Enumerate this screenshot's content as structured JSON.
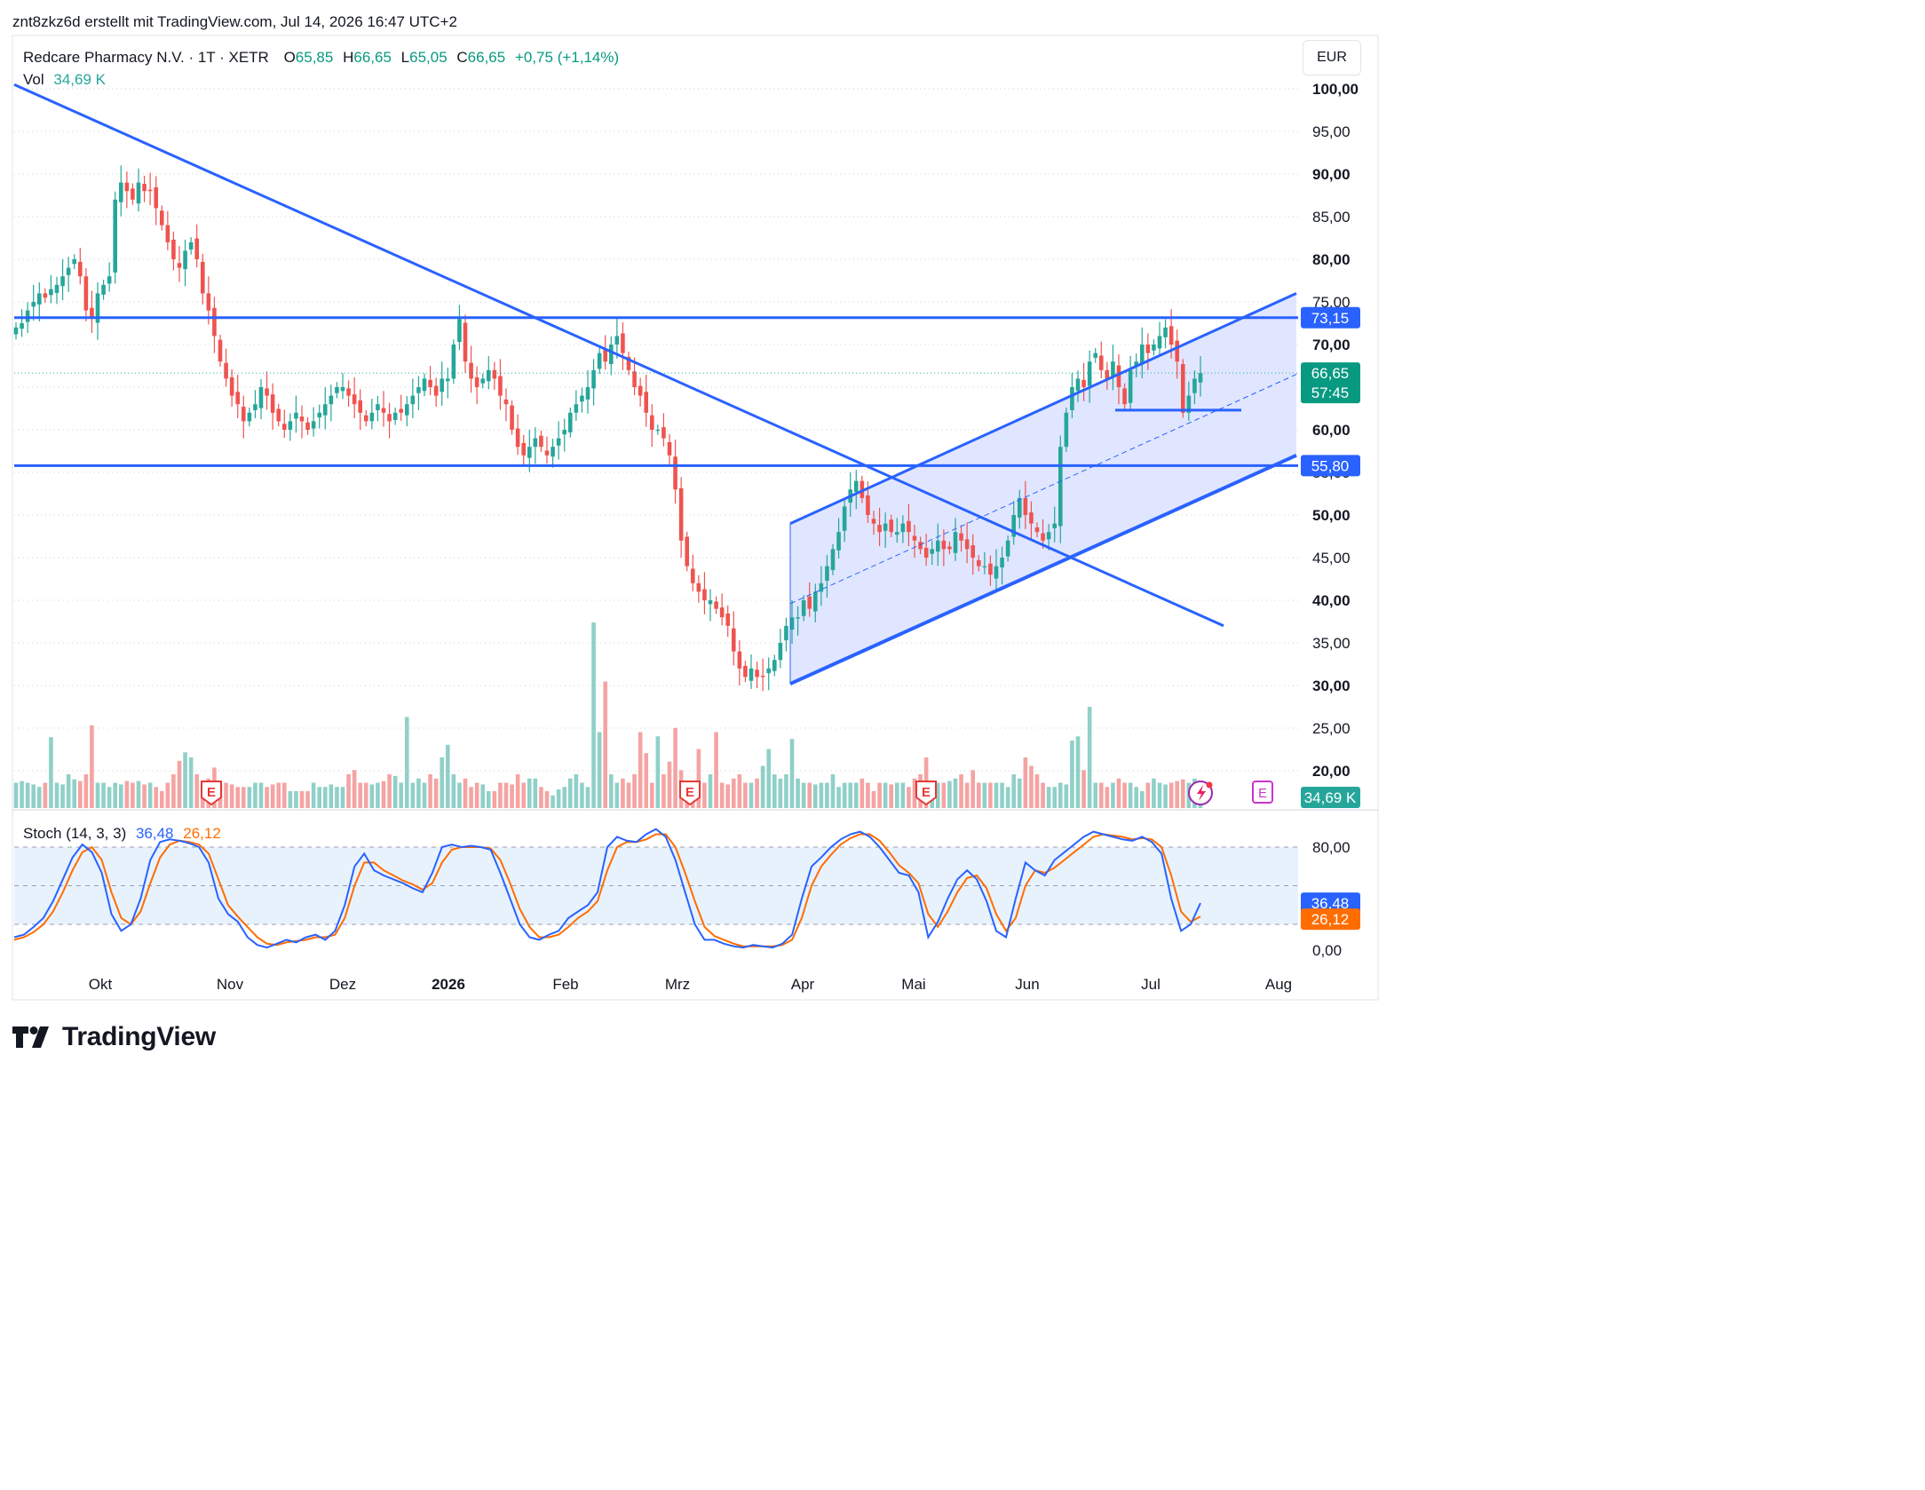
{
  "caption": "znt8zkz6d erstellt mit TradingView.com, Jul 14, 2026 16:47 UTC+2",
  "legend": {
    "symbol": "Redcare Pharmacy N.V. · 1T · XETR",
    "o_label": "O",
    "o_value": "65,85",
    "h_label": "H",
    "h_value": "66,65",
    "l_label": "L",
    "l_value": "65,05",
    "c_label": "C",
    "c_value": "66,65",
    "change": "+0,75 (+1,14%)",
    "vol_label": "Vol",
    "vol_value": "34,69 K",
    "stoch_label": "Stoch (14, 3, 3)",
    "stoch_k": "36,48",
    "stoch_d": "26,12"
  },
  "currency": "EUR",
  "brand": "TradingView",
  "colors": {
    "up": "#26a69a",
    "down": "#ef5350",
    "vol_up": "#8fd0c8",
    "vol_down": "#f5a3a3",
    "trendline": "#2962ff",
    "channel_fill": "#dbe2ff",
    "stoch_k": "#2962ff",
    "stoch_d": "#ff6d00",
    "stoch_band": "#e8f2fd",
    "earnings": "#e53935",
    "dividend": "#cc33cc"
  },
  "icons": [
    "earnings-marker-icon",
    "tradingview-logo-icon",
    "flash-icon",
    "dividend-marker-icon"
  ],
  "chart_data": {
    "type": "candlestick",
    "price_axis": {
      "ticks": [
        "100,00",
        "95,00",
        "90,00",
        "85,00",
        "80,00",
        "75,00",
        "70,00",
        "65,00",
        "60,00",
        "55,00",
        "50,00",
        "45,00",
        "40,00",
        "35,00",
        "30,00",
        "25,00",
        "20,00"
      ],
      "ylim": [
        18,
        104
      ]
    },
    "time_axis": [
      "Okt",
      "Nov",
      "Dez",
      "2026",
      "Feb",
      "Mrz",
      "Apr",
      "Mai",
      "Jun",
      "Jul",
      "Aug"
    ],
    "price_labels": [
      {
        "value": "73,15",
        "kind": "line"
      },
      {
        "value": "66,65",
        "kind": "last"
      },
      {
        "value": "57:45",
        "kind": "countdown"
      },
      {
        "value": "55,80",
        "kind": "line"
      },
      {
        "value": "34,69 K",
        "kind": "volume"
      }
    ],
    "candles_close": [
      72,
      72.5,
      74,
      75,
      76,
      75.5,
      76.5,
      77,
      78,
      79,
      80,
      78,
      74,
      73,
      76,
      77,
      78,
      87,
      89,
      88,
      87,
      89,
      88,
      88,
      86,
      84,
      82,
      80,
      79,
      81,
      82,
      80,
      76,
      74,
      71,
      68,
      66,
      64,
      63,
      61,
      62,
      63,
      65,
      64,
      62,
      61,
      60,
      61,
      62,
      61,
      60,
      61,
      62,
      63,
      64,
      65,
      65,
      64,
      63,
      62,
      61,
      62,
      63,
      62,
      61,
      62,
      62,
      63,
      64,
      65,
      66,
      65,
      64,
      66,
      66,
      70,
      73,
      68,
      66,
      65,
      66,
      67,
      66,
      64,
      63,
      60,
      58,
      57,
      58,
      59,
      58,
      57,
      58,
      59,
      60,
      62,
      63,
      64,
      65,
      67,
      69,
      68,
      70,
      71,
      69,
      67,
      65,
      64,
      62,
      60,
      60,
      59,
      57,
      53,
      47,
      44,
      42,
      41,
      40,
      40,
      39,
      38,
      37,
      34,
      32,
      31,
      32,
      31,
      31,
      32,
      33,
      35,
      37,
      38,
      38,
      40,
      39,
      41,
      42,
      44,
      46,
      48,
      51,
      53,
      54,
      52,
      50,
      49,
      48,
      49,
      48,
      48,
      49,
      48,
      47,
      46,
      45,
      46,
      47,
      46,
      46,
      48,
      47,
      46,
      45,
      44,
      44,
      43,
      44,
      45,
      47,
      50,
      52,
      50,
      49,
      48,
      47,
      48,
      49,
      58,
      62,
      65,
      66,
      65,
      68,
      69,
      67,
      66,
      68,
      65,
      63,
      67,
      68,
      70,
      69,
      70,
      71,
      72,
      70,
      68,
      62,
      64,
      66,
      66.65
    ],
    "volume_axis_label": "34,69 K",
    "stochastic": {
      "k_last": 36.48,
      "d_last": 26.12,
      "ticks": [
        "80,00",
        "0,00"
      ],
      "bands": [
        80,
        50,
        20
      ],
      "k": [
        10,
        12,
        18,
        25,
        38,
        55,
        72,
        82,
        76,
        60,
        28,
        15,
        20,
        40,
        70,
        84,
        86,
        85,
        83,
        80,
        68,
        40,
        28,
        22,
        10,
        4,
        2,
        5,
        8,
        6,
        10,
        12,
        8,
        15,
        35,
        65,
        75,
        62,
        58,
        55,
        52,
        48,
        45,
        60,
        80,
        82,
        80,
        81,
        80,
        78,
        60,
        40,
        20,
        10,
        8,
        12,
        15,
        25,
        30,
        35,
        45,
        80,
        88,
        85,
        84,
        90,
        94,
        88,
        70,
        45,
        20,
        8,
        8,
        5,
        3,
        2,
        4,
        3,
        2,
        5,
        12,
        40,
        65,
        72,
        80,
        86,
        90,
        92,
        88,
        80,
        70,
        60,
        58,
        45,
        10,
        22,
        40,
        55,
        62,
        55,
        38,
        15,
        10,
        40,
        68,
        62,
        58,
        70,
        76,
        82,
        88,
        92,
        90,
        88,
        86,
        85,
        88,
        84,
        75,
        40,
        15,
        20,
        36.48
      ],
      "d": [
        8,
        10,
        14,
        20,
        30,
        45,
        62,
        76,
        80,
        70,
        45,
        25,
        20,
        30,
        52,
        72,
        82,
        85,
        84,
        82,
        75,
        55,
        35,
        26,
        18,
        10,
        5,
        4,
        6,
        7,
        8,
        10,
        10,
        12,
        25,
        50,
        68,
        68,
        62,
        58,
        54,
        51,
        47,
        52,
        68,
        78,
        80,
        80,
        80,
        79,
        70,
        52,
        32,
        18,
        10,
        10,
        12,
        18,
        25,
        30,
        38,
        62,
        80,
        84,
        84,
        86,
        90,
        90,
        80,
        60,
        38,
        18,
        11,
        8,
        5,
        3,
        3,
        3,
        3,
        4,
        8,
        25,
        50,
        65,
        74,
        82,
        87,
        90,
        90,
        85,
        76,
        66,
        60,
        52,
        28,
        18,
        30,
        45,
        56,
        58,
        48,
        28,
        15,
        25,
        50,
        62,
        60,
        64,
        70,
        76,
        82,
        88,
        90,
        89,
        88,
        86,
        87,
        86,
        80,
        58,
        30,
        22,
        26.12
      ]
    },
    "lines": [
      {
        "name": "horizontal-resistance",
        "price": 73.15
      },
      {
        "name": "horizontal-support",
        "price": 55.8
      },
      {
        "name": "descending-trendline",
        "from_price": 100.5,
        "to_price": 37
      },
      {
        "name": "ascending-channel",
        "lower_from": 30.2,
        "lower_to": 57,
        "upper_from": 49,
        "upper_to": 76
      },
      {
        "name": "short-support",
        "price": 62.3
      }
    ]
  }
}
